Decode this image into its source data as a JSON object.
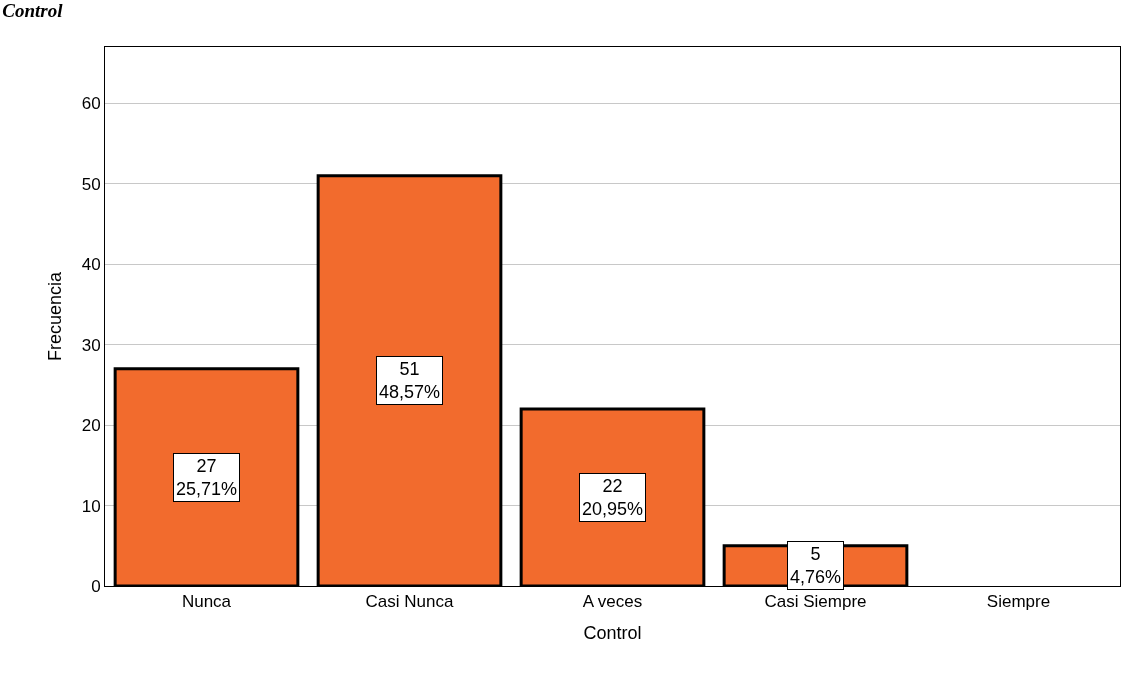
{
  "chart_data": {
    "type": "bar",
    "title": "Control",
    "xlabel": "Control",
    "ylabel": "Frecuencia",
    "categories": [
      "Nunca",
      "Casi Nunca",
      "A veces",
      "Casi Siempre",
      "Siempre"
    ],
    "values": [
      27,
      51,
      22,
      5,
      0
    ],
    "value_labels": [
      "27\n25,71%",
      "51\n48,57%",
      "22\n20,95%",
      "5\n4,76%",
      null
    ],
    "color": "#f26b2d",
    "ylim": [
      0,
      67
    ],
    "yticks": [
      0,
      10,
      20,
      30,
      40,
      50,
      60
    ],
    "grid": "y",
    "legend": false
  }
}
